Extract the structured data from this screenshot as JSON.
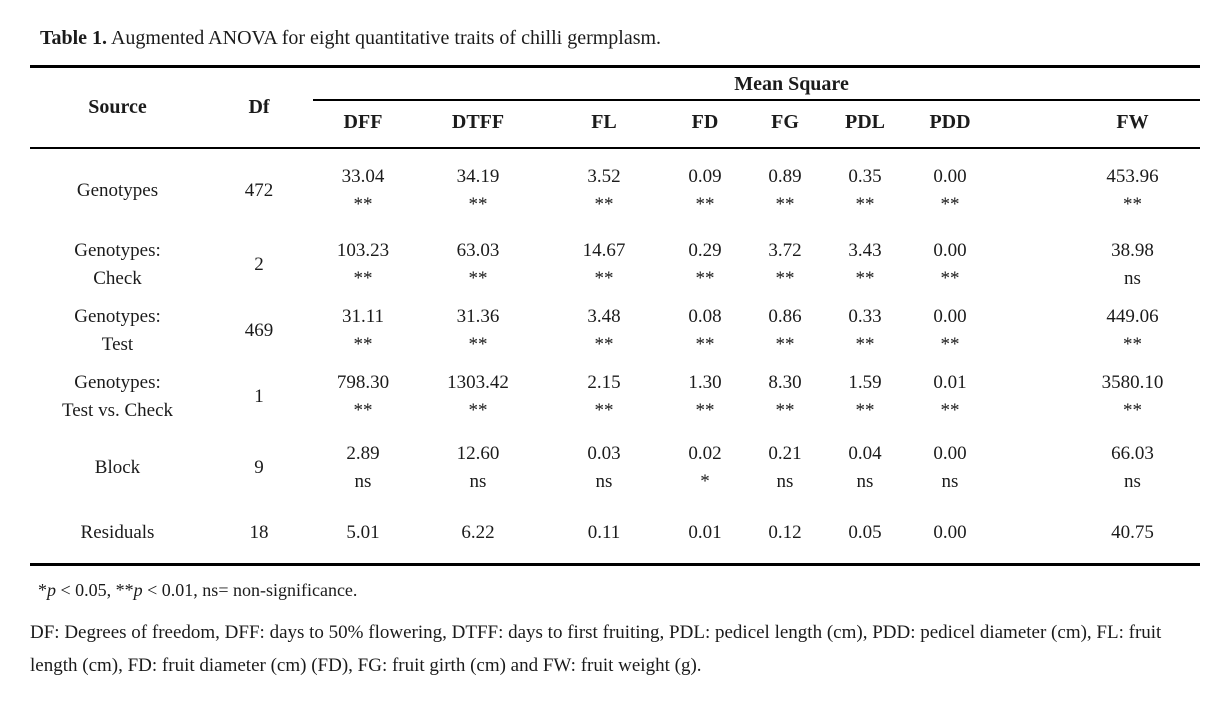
{
  "caption": {
    "label": "Table 1.",
    "text": "Augmented ANOVA for eight quantitative traits of chilli germplasm."
  },
  "table": {
    "source_header": "Source",
    "df_header": "Df",
    "group_header": "Mean Square",
    "trait_columns": [
      "DFF",
      "DTFF",
      "FL",
      "FD",
      "FG",
      "PDL",
      "PDD",
      "FW"
    ],
    "rows": [
      {
        "source": [
          "Genotypes"
        ],
        "df": "472",
        "cells": [
          {
            "v": "33.04",
            "s": "**"
          },
          {
            "v": "34.19",
            "s": "**"
          },
          {
            "v": "3.52",
            "s": "**"
          },
          {
            "v": "0.09",
            "s": "**"
          },
          {
            "v": "0.89",
            "s": "**"
          },
          {
            "v": "0.35",
            "s": "**"
          },
          {
            "v": "0.00",
            "s": "**"
          },
          {
            "v": "453.96",
            "s": "**"
          }
        ]
      },
      {
        "source": [
          "Genotypes:",
          "Check"
        ],
        "df": "2",
        "cells": [
          {
            "v": "103.23",
            "s": "**"
          },
          {
            "v": "63.03",
            "s": "**"
          },
          {
            "v": "14.67",
            "s": "**"
          },
          {
            "v": "0.29",
            "s": "**"
          },
          {
            "v": "3.72",
            "s": "**"
          },
          {
            "v": "3.43",
            "s": "**"
          },
          {
            "v": "0.00",
            "s": "**"
          },
          {
            "v": "38.98",
            "s": "ns"
          }
        ]
      },
      {
        "source": [
          "Genotypes:",
          "Test"
        ],
        "df": "469",
        "cells": [
          {
            "v": "31.11",
            "s": "**"
          },
          {
            "v": "31.36",
            "s": "**"
          },
          {
            "v": "3.48",
            "s": "**"
          },
          {
            "v": "0.08",
            "s": "**"
          },
          {
            "v": "0.86",
            "s": "**"
          },
          {
            "v": "0.33",
            "s": "**"
          },
          {
            "v": "0.00",
            "s": "**"
          },
          {
            "v": "449.06",
            "s": "**"
          }
        ]
      },
      {
        "source": [
          "Genotypes:",
          "Test vs. Check"
        ],
        "df": "1",
        "cells": [
          {
            "v": "798.30",
            "s": "**"
          },
          {
            "v": "1303.42",
            "s": "**"
          },
          {
            "v": "2.15",
            "s": "**"
          },
          {
            "v": "1.30",
            "s": "**"
          },
          {
            "v": "8.30",
            "s": "**"
          },
          {
            "v": "1.59",
            "s": "**"
          },
          {
            "v": "0.01",
            "s": "**"
          },
          {
            "v": "3580.10",
            "s": "**"
          }
        ]
      },
      {
        "source": [
          "Block"
        ],
        "df": "9",
        "cells": [
          {
            "v": "2.89",
            "s": "ns"
          },
          {
            "v": "12.60",
            "s": "ns"
          },
          {
            "v": "0.03",
            "s": "ns"
          },
          {
            "v": "0.02",
            "s": "*"
          },
          {
            "v": "0.21",
            "s": "ns"
          },
          {
            "v": "0.04",
            "s": "ns"
          },
          {
            "v": "0.00",
            "s": "ns"
          },
          {
            "v": "66.03",
            "s": "ns"
          }
        ]
      },
      {
        "source": [
          "Residuals"
        ],
        "df": "18",
        "cells": [
          {
            "v": "5.01",
            "s": ""
          },
          {
            "v": "6.22",
            "s": ""
          },
          {
            "v": "0.11",
            "s": ""
          },
          {
            "v": "0.01",
            "s": ""
          },
          {
            "v": "0.12",
            "s": ""
          },
          {
            "v": "0.05",
            "s": ""
          },
          {
            "v": "0.00",
            "s": ""
          },
          {
            "v": "40.75",
            "s": ""
          }
        ]
      }
    ]
  },
  "footnotes": {
    "significance": {
      "star1": "*",
      "p1": "p",
      "mid": " < 0.05, **",
      "p2": "p",
      "end": " < 0.01, ns= non-significance."
    },
    "abbreviations": "DF: Degrees of freedom, DFF: days to 50% flowering, DTFF: days to first fruiting, PDL: pedicel length (cm), PDD: pedicel diameter (cm), FL: fruit length (cm), FD: fruit diameter (cm) (FD), FG: fruit girth (cm) and FW: fruit weight (g)."
  }
}
